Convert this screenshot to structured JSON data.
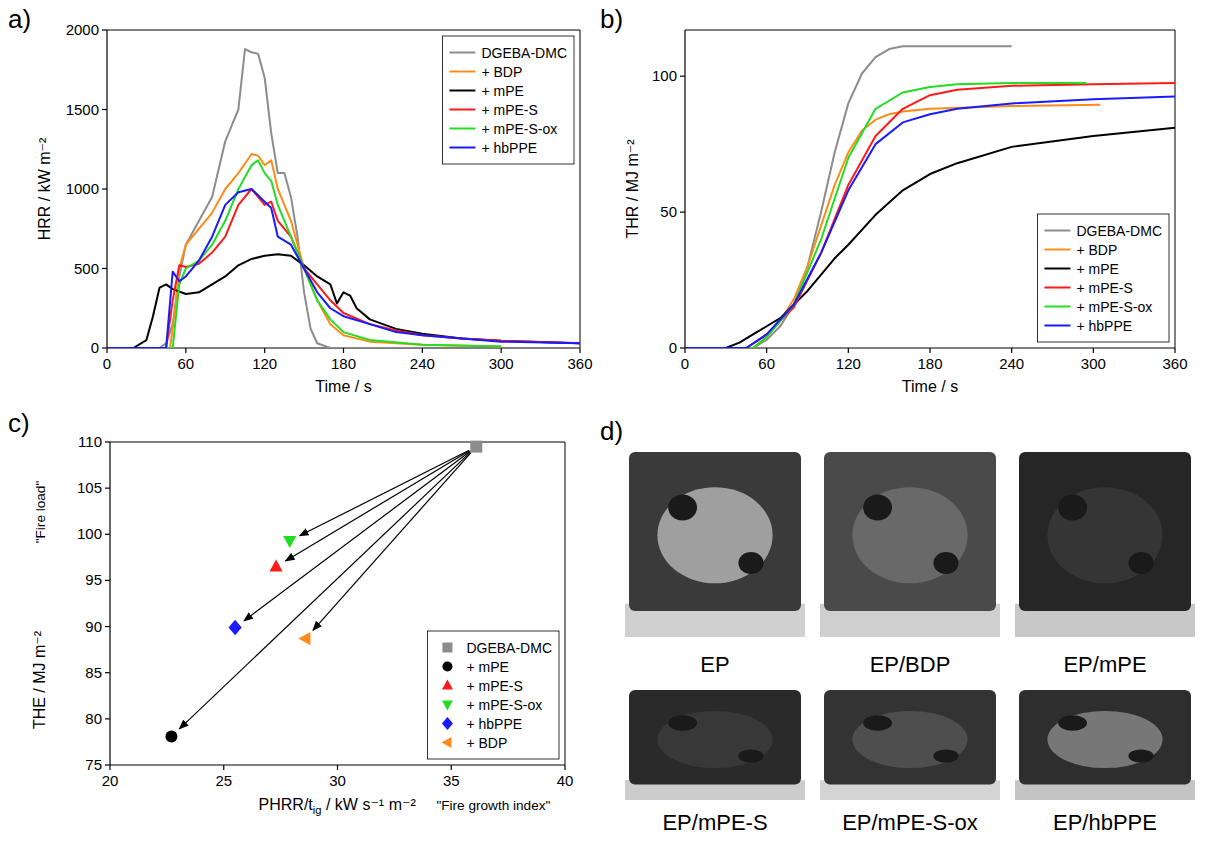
{
  "chart_data": [
    {
      "type": "line",
      "title": "a)",
      "xlabel": "Time / s",
      "ylabel": "HRR / kW m⁻²",
      "xlim": [
        0,
        360
      ],
      "ylim": [
        0,
        2000
      ],
      "xticks": [
        0,
        60,
        120,
        180,
        240,
        300,
        360
      ],
      "yticks": [
        0,
        500,
        1000,
        1500,
        2000
      ],
      "legend": "upper right",
      "series": [
        {
          "name": "DGEBA-DMC",
          "color": "#8c8c8c",
          "x": [
            0,
            40,
            45,
            50,
            55,
            60,
            70,
            80,
            90,
            95,
            100,
            105,
            110,
            115,
            120,
            125,
            130,
            135,
            140,
            145,
            150,
            155,
            160,
            170,
            240
          ],
          "values": [
            0,
            0,
            30,
            150,
            450,
            650,
            800,
            950,
            1300,
            1400,
            1500,
            1880,
            1860,
            1850,
            1700,
            1350,
            1100,
            1100,
            950,
            700,
            350,
            120,
            30,
            0,
            0
          ]
        },
        {
          "name": "+ BDP",
          "color": "#ff8c1a",
          "x": [
            0,
            48,
            52,
            55,
            60,
            70,
            80,
            90,
            100,
            110,
            115,
            120,
            125,
            130,
            140,
            150,
            160,
            170,
            180,
            200,
            240,
            300
          ],
          "values": [
            0,
            0,
            250,
            500,
            650,
            750,
            850,
            1000,
            1100,
            1220,
            1210,
            1150,
            1180,
            1000,
            800,
            500,
            300,
            150,
            80,
            40,
            20,
            10
          ]
        },
        {
          "name": "+ mPE",
          "color": "#000000",
          "x": [
            0,
            20,
            30,
            35,
            40,
            45,
            50,
            60,
            70,
            80,
            90,
            100,
            110,
            120,
            130,
            140,
            150,
            160,
            170,
            175,
            180,
            185,
            190,
            200,
            220,
            240,
            270,
            300,
            360
          ],
          "values": [
            0,
            0,
            50,
            200,
            380,
            400,
            370,
            340,
            350,
            400,
            450,
            520,
            560,
            580,
            590,
            580,
            520,
            450,
            400,
            280,
            350,
            330,
            250,
            180,
            120,
            90,
            60,
            45,
            30
          ]
        },
        {
          "name": "+ mPE-S",
          "color": "#ff1a1a",
          "x": [
            0,
            45,
            50,
            55,
            60,
            70,
            80,
            90,
            100,
            110,
            115,
            120,
            125,
            130,
            140,
            150,
            160,
            170,
            180,
            200,
            220,
            240,
            270,
            300,
            360
          ],
          "values": [
            0,
            0,
            300,
            520,
            510,
            530,
            600,
            700,
            900,
            1000,
            950,
            900,
            920,
            800,
            700,
            500,
            400,
            300,
            220,
            150,
            110,
            80,
            60,
            45,
            30
          ]
        },
        {
          "name": "+ mPE-S-ox",
          "color": "#22dd22",
          "x": [
            0,
            50,
            55,
            60,
            70,
            80,
            90,
            100,
            110,
            115,
            120,
            125,
            130,
            140,
            150,
            160,
            170,
            180,
            200,
            240,
            300
          ],
          "values": [
            0,
            0,
            400,
            500,
            550,
            650,
            800,
            1000,
            1150,
            1180,
            1100,
            1050,
            900,
            700,
            500,
            300,
            180,
            100,
            50,
            20,
            10
          ]
        },
        {
          "name": "+ hbPPE",
          "color": "#1a1aff",
          "x": [
            0,
            45,
            50,
            55,
            60,
            70,
            80,
            90,
            100,
            110,
            120,
            125,
            130,
            140,
            150,
            160,
            170,
            180,
            200,
            220,
            240,
            270,
            300,
            360
          ],
          "values": [
            0,
            0,
            480,
            420,
            450,
            550,
            700,
            900,
            980,
            1000,
            920,
            880,
            700,
            650,
            500,
            350,
            250,
            200,
            150,
            100,
            80,
            60,
            40,
            30
          ]
        }
      ]
    },
    {
      "type": "line",
      "title": "b)",
      "xlabel": "Time / s",
      "ylabel": "THR / MJ m⁻²",
      "xlim": [
        0,
        360
      ],
      "ylim": [
        0,
        117
      ],
      "xticks": [
        0,
        60,
        120,
        180,
        240,
        300,
        360
      ],
      "yticks": [
        0,
        50,
        100
      ],
      "legend": "lower right",
      "series": [
        {
          "name": "DGEBA-DMC",
          "color": "#8c8c8c",
          "x": [
            0,
            50,
            60,
            70,
            80,
            90,
            100,
            110,
            120,
            130,
            140,
            150,
            160,
            240
          ],
          "values": [
            0,
            0,
            3,
            8,
            16,
            30,
            50,
            72,
            90,
            101,
            107,
            110,
            111,
            111
          ]
        },
        {
          "name": "+ BDP",
          "color": "#ff8c1a",
          "x": [
            0,
            50,
            60,
            70,
            80,
            90,
            100,
            110,
            120,
            130,
            140,
            150,
            160,
            180,
            240,
            305
          ],
          "values": [
            0,
            0,
            4,
            10,
            18,
            30,
            45,
            60,
            72,
            80,
            84,
            86,
            87,
            88,
            89,
            89.5
          ]
        },
        {
          "name": "+ mPE",
          "color": "#000000",
          "x": [
            0,
            30,
            40,
            50,
            60,
            70,
            80,
            90,
            100,
            110,
            120,
            140,
            160,
            180,
            200,
            240,
            300,
            360
          ],
          "values": [
            0,
            0,
            2,
            5,
            8,
            11,
            16,
            21,
            27,
            33,
            38,
            49,
            58,
            64,
            68,
            74,
            78,
            81
          ]
        },
        {
          "name": "+ mPE-S",
          "color": "#ff1a1a",
          "x": [
            0,
            45,
            60,
            80,
            100,
            120,
            140,
            160,
            180,
            200,
            240,
            300,
            360
          ],
          "values": [
            0,
            0,
            5,
            15,
            35,
            60,
            78,
            88,
            93,
            95,
            96.5,
            97,
            97.5
          ]
        },
        {
          "name": "+ mPE-S-ox",
          "color": "#22dd22",
          "x": [
            0,
            50,
            60,
            80,
            100,
            120,
            140,
            160,
            180,
            200,
            240,
            295
          ],
          "values": [
            0,
            0,
            4,
            16,
            40,
            70,
            88,
            94,
            96,
            97,
            97.5,
            97.5
          ]
        },
        {
          "name": "+ hbPPE",
          "color": "#1a1aff",
          "x": [
            0,
            45,
            60,
            80,
            100,
            120,
            140,
            160,
            180,
            200,
            240,
            300,
            360
          ],
          "values": [
            0,
            0,
            5,
            16,
            35,
            58,
            75,
            83,
            86,
            88,
            90,
            91.5,
            92.5
          ]
        }
      ]
    },
    {
      "type": "scatter",
      "title": "c)",
      "xlabel": [
        "PHRR/t",
        "ig",
        " / kW s⁻¹ m⁻²"
      ],
      "ylabel": "THE / MJ m⁻²",
      "annotations": {
        "x": "\"Fire growth index\"",
        "y": "\"Fire load\""
      },
      "xlim": [
        20,
        40
      ],
      "ylim": [
        75,
        110
      ],
      "xticks": [
        20,
        25,
        30,
        35,
        40
      ],
      "yticks": [
        75,
        80,
        85,
        90,
        95,
        100,
        105,
        110
      ],
      "legend": "lower right",
      "series": [
        {
          "name": "DGEBA-DMC",
          "color": "#8c8c8c",
          "marker": "square",
          "x": [
            36.1
          ],
          "values": [
            109.5
          ]
        },
        {
          "name": "+ mPE",
          "color": "#000000",
          "marker": "circle",
          "x": [
            22.7
          ],
          "values": [
            78.1
          ]
        },
        {
          "name": "+ mPE-S",
          "color": "#ff1a1a",
          "marker": "triangle-up",
          "x": [
            27.3
          ],
          "values": [
            96.5
          ]
        },
        {
          "name": "+ mPE-S-ox",
          "color": "#22dd22",
          "marker": "triangle-down",
          "x": [
            27.9
          ],
          "values": [
            99.3
          ]
        },
        {
          "name": "+ hbPPE",
          "color": "#1a1aff",
          "marker": "diamond",
          "x": [
            25.5
          ],
          "values": [
            89.9
          ]
        },
        {
          "name": "+ BDP",
          "color": "#ff8c1a",
          "marker": "triangle-left",
          "x": [
            28.6
          ],
          "values": [
            88.7
          ]
        }
      ]
    }
  ],
  "photos": {
    "title": "d)",
    "items": [
      {
        "label": "EP"
      },
      {
        "label": "EP/BDP"
      },
      {
        "label": "EP/mPE"
      },
      {
        "label": "EP/mPE-S"
      },
      {
        "label": "EP/mPE-S-ox"
      },
      {
        "label": "EP/hbPPE"
      }
    ]
  }
}
